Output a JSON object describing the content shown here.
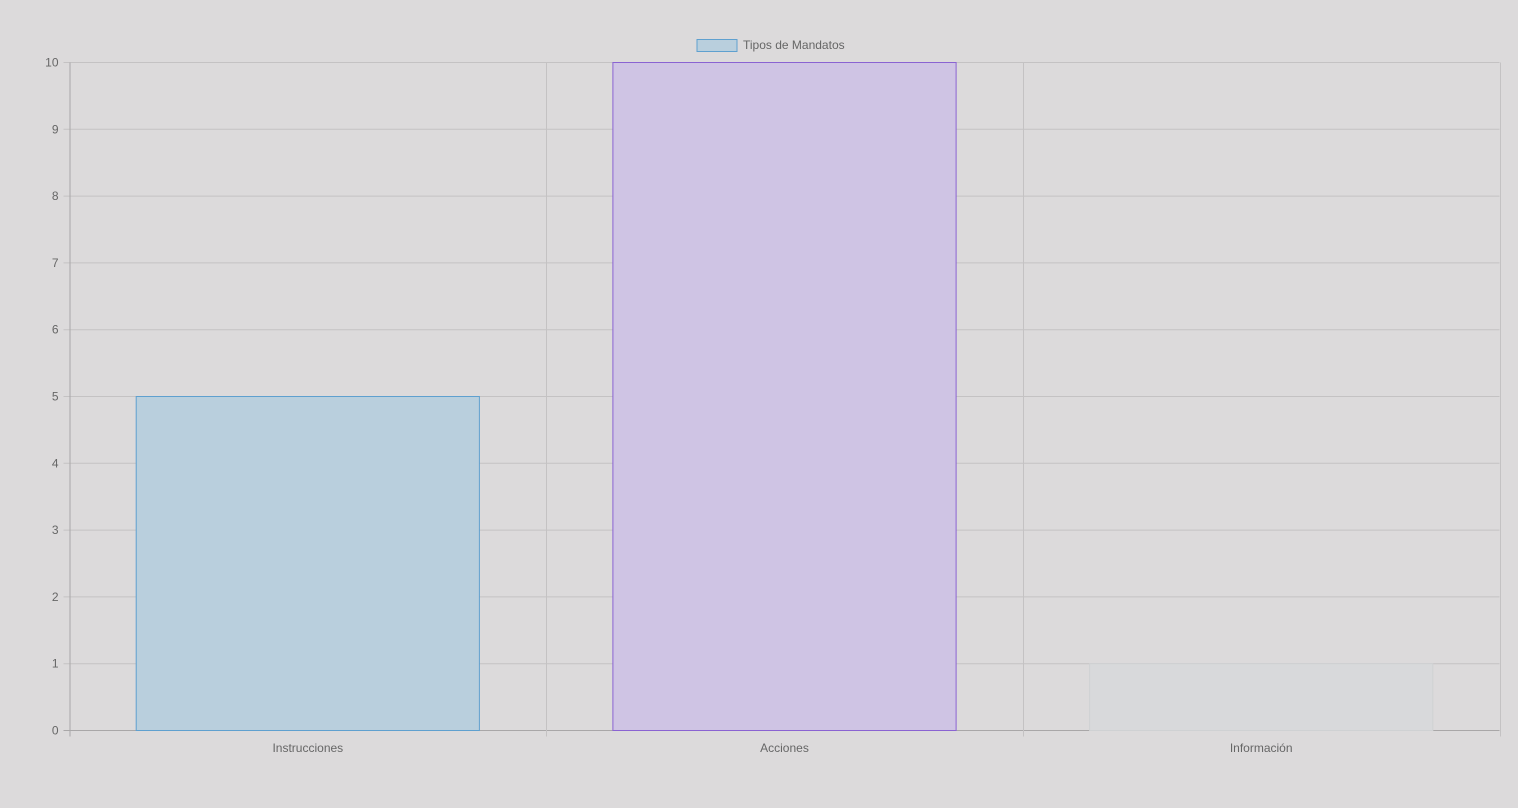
{
  "chart_data": {
    "type": "bar",
    "categories": [
      "Instrucciones",
      "Acciones",
      "Información"
    ],
    "series": [
      {
        "name": "Tipos de Mandatos",
        "values": [
          5,
          10,
          1
        ]
      }
    ],
    "ylim": [
      0,
      10
    ],
    "yticks": [
      0,
      1,
      2,
      3,
      4,
      5,
      6,
      7,
      8,
      9,
      10
    ],
    "grid": true,
    "legend_position": "top",
    "bar_colors": [
      {
        "fill": "#b9cfdd",
        "stroke": "#5fa0cf"
      },
      {
        "fill": "#cfc4e4",
        "stroke": "#8a63d2"
      },
      {
        "fill": "#d8d9db",
        "stroke": "#cfd1d3"
      }
    ],
    "legend_swatch": {
      "fill": "#b9cfdd",
      "stroke": "#5fa0cf"
    },
    "grid_color": "#c4c2c3",
    "text_color": "#666666"
  }
}
